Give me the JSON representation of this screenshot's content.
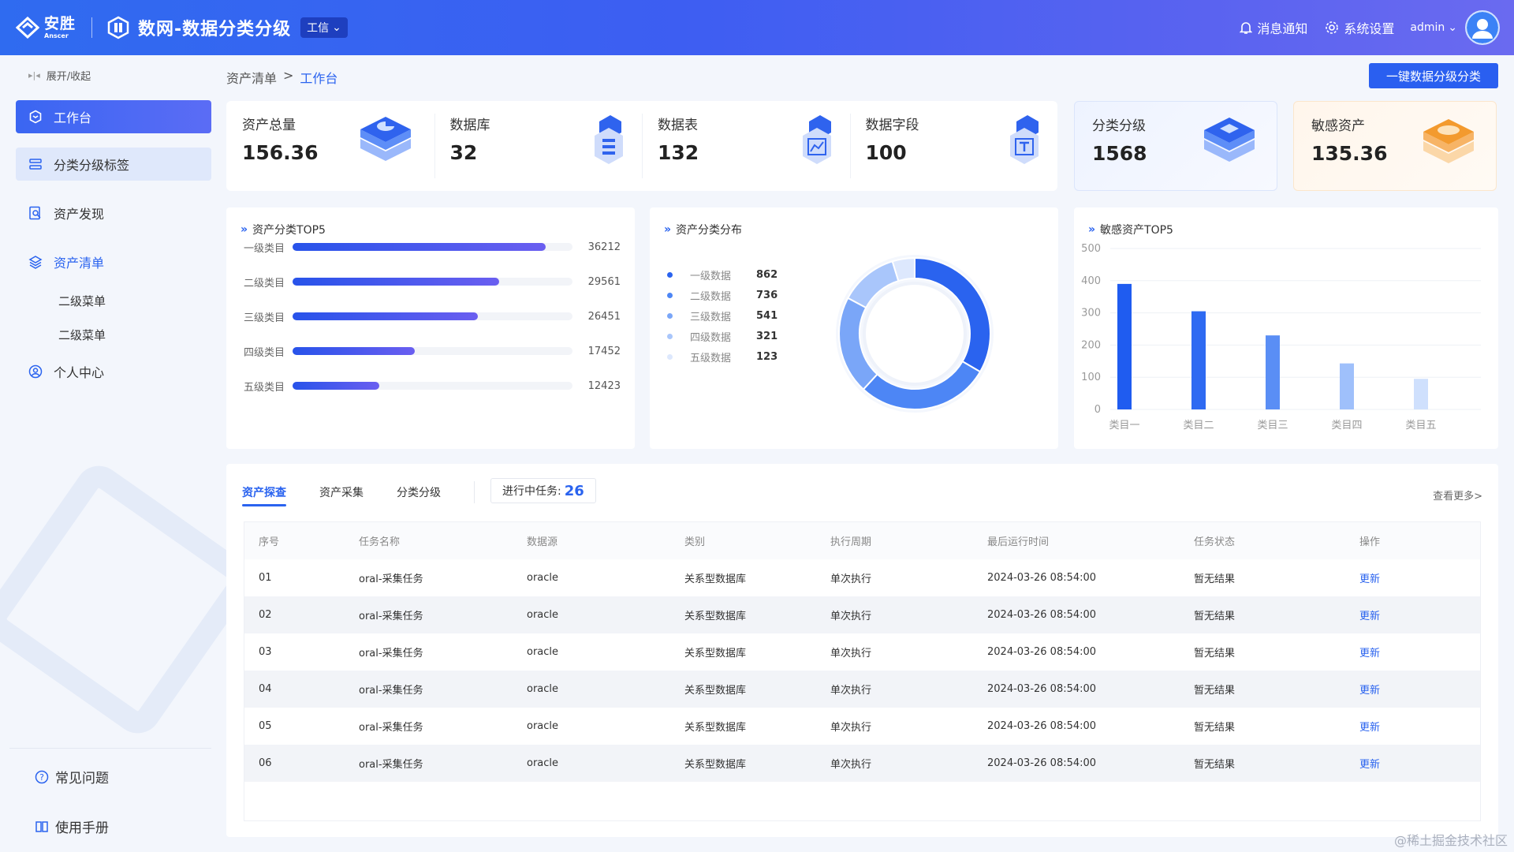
{
  "header": {
    "logo_cn": "安胜",
    "logo_en": "Anscer",
    "app_title": "数网-数据分类分级",
    "env_tag": "工信",
    "notifications": "消息通知",
    "settings": "系统设置",
    "user": "admin"
  },
  "sidebar": {
    "collapse": "展开/收起",
    "items": [
      {
        "label": "工作台",
        "icon": "hexagon-icon"
      },
      {
        "label": "分类分级标签",
        "icon": "tag-list-icon"
      },
      {
        "label": "资产发现",
        "icon": "search-doc-icon"
      },
      {
        "label": "资产清单",
        "icon": "layers-icon"
      },
      {
        "label": "个人中心",
        "icon": "user-circle-icon"
      }
    ],
    "sub_items": [
      "二级菜单",
      "二级菜单"
    ],
    "faq": "常见问题",
    "manual": "使用手册"
  },
  "breadcrumb": {
    "parent": "资产清单",
    "sep": ">",
    "current": "工作台"
  },
  "action_button": "一键数据分级分类",
  "stats": [
    {
      "label": "资产总量",
      "value": "156.36"
    },
    {
      "label": "数据库",
      "value": "32"
    },
    {
      "label": "数据表",
      "value": "132"
    },
    {
      "label": "数据字段",
      "value": "100"
    }
  ],
  "stat_cards": [
    {
      "label": "分类分级",
      "value": "1568"
    },
    {
      "label": "敏感资产",
      "value": "135.36"
    }
  ],
  "panels": {
    "top5_title": "资产分类TOP5",
    "dist_title": "资产分类分布",
    "sensitive_title": "敏感资产TOP5"
  },
  "chart_data": [
    {
      "type": "bar",
      "orientation": "horizontal",
      "title": "资产分类TOP5",
      "categories": [
        "一级类目",
        "二级类目",
        "三级类目",
        "四级类目",
        "五级类目"
      ],
      "values": [
        36212,
        29561,
        26451,
        17452,
        12423
      ],
      "xlim": [
        0,
        40000
      ]
    },
    {
      "type": "pie",
      "title": "资产分类分布",
      "categories": [
        "一级数据",
        "二级数据",
        "三级数据",
        "四级数据",
        "五级数据"
      ],
      "values": [
        862,
        736,
        541,
        321,
        123
      ],
      "colors": [
        "#2a63ef",
        "#4d86f5",
        "#7aa6f8",
        "#a9c6fb",
        "#dde8fd"
      ],
      "legend": "left"
    },
    {
      "type": "bar",
      "title": "敏感资产TOP5",
      "categories": [
        "类目一",
        "类目二",
        "类目三",
        "类目四",
        "类目五"
      ],
      "values": [
        390,
        305,
        230,
        143,
        95
      ],
      "ylim": [
        0,
        500
      ],
      "yticks": [
        0,
        100,
        200,
        300,
        400,
        500
      ],
      "grid": true,
      "colors": [
        "#1f5cf0",
        "#2e6af2",
        "#5a8ef5",
        "#9fc0fb",
        "#cfe0fd"
      ]
    }
  ],
  "tabs": [
    "资产探查",
    "资产采集",
    "分类分级"
  ],
  "task_label": "进行中任务:",
  "task_count": "26",
  "more_link": "查看更多>",
  "table": {
    "headers": [
      "序号",
      "任务名称",
      "数据源",
      "类别",
      "执行周期",
      "最后运行时间",
      "任务状态",
      "操作"
    ],
    "rows": [
      [
        "01",
        "oral-采集任务",
        "oracle",
        "关系型数据库",
        "单次执行",
        "2024-03-26 08:54:00",
        "暂无结果",
        "更新"
      ],
      [
        "02",
        "oral-采集任务",
        "oracle",
        "关系型数据库",
        "单次执行",
        "2024-03-26 08:54:00",
        "暂无结果",
        "更新"
      ],
      [
        "03",
        "oral-采集任务",
        "oracle",
        "关系型数据库",
        "单次执行",
        "2024-03-26 08:54:00",
        "暂无结果",
        "更新"
      ],
      [
        "04",
        "oral-采集任务",
        "oracle",
        "关系型数据库",
        "单次执行",
        "2024-03-26 08:54:00",
        "暂无结果",
        "更新"
      ],
      [
        "05",
        "oral-采集任务",
        "oracle",
        "关系型数据库",
        "单次执行",
        "2024-03-26 08:54:00",
        "暂无结果",
        "更新"
      ],
      [
        "06",
        "oral-采集任务",
        "oracle",
        "关系型数据库",
        "单次执行",
        "2024-03-26 08:54:00",
        "暂无结果",
        "更新"
      ]
    ]
  },
  "watermark": "@稀土掘金技术社区"
}
